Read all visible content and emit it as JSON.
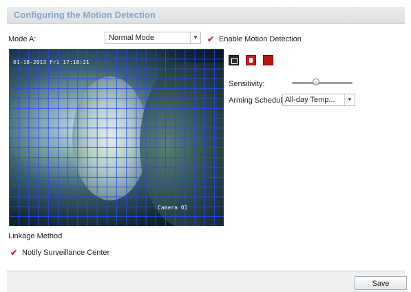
{
  "panel": {
    "title": "Configuring the Motion Detection"
  },
  "mode": {
    "label": "Mode A:",
    "selected": "Normal Mode"
  },
  "enable": {
    "label": "Enable Motion Detection",
    "checked": true
  },
  "video": {
    "timestamp_osd": "01-18-2013 Fri 17:18:21",
    "camera_osd": "Camera 01"
  },
  "tools": {
    "icons": [
      "draw-area-icon",
      "clear-all-icon",
      "full-screen-area-icon"
    ]
  },
  "sensitivity": {
    "label": "Sensitivity:",
    "level": 0.4
  },
  "arming": {
    "label": "Arming Schedule:",
    "selected": "All-day Temp..."
  },
  "linkage": {
    "heading": "Linkage Method",
    "notify_label": "Notify Surveillance Center",
    "notify_checked": true
  },
  "footer": {
    "save_label": "Save"
  },
  "colors": {
    "check": "#c8242c",
    "grid": "#2846ff",
    "title": "#8aa6c4"
  }
}
